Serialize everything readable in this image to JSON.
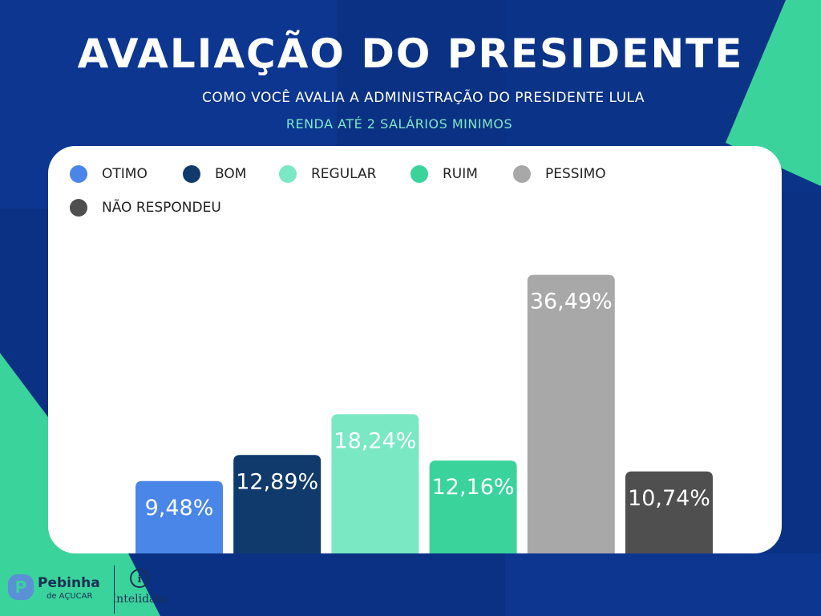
{
  "header": {
    "title": "AVALIAÇÃO DO PRESIDENTE",
    "subtitle": "COMO VOCÊ AVALIA A ADMINISTRAÇÃO DO PRESIDENTE LULA",
    "filter": "RENDA ATÉ 2 SALÁRIOS MINIMOS"
  },
  "colors": {
    "background": "#0a3183",
    "accent": "#3ad39c",
    "otimo": "#4a86e8",
    "bom": "#0f3a6b",
    "regular": "#79e8c3",
    "ruim": "#3ad39c",
    "pessimo": "#a8a8a8",
    "nao_respondeu": "#4f4f4f"
  },
  "legend": [
    {
      "label": "OTIMO"
    },
    {
      "label": "BOM"
    },
    {
      "label": "REGULAR"
    },
    {
      "label": "RUIM"
    },
    {
      "label": "PESSIMO"
    },
    {
      "label": "NÃO RESPONDEU"
    }
  ],
  "chart_data": {
    "type": "bar",
    "categories": [
      "OTIMO",
      "BOM",
      "REGULAR",
      "RUIM",
      "PESSIMO",
      "NÃO RESPONDEU"
    ],
    "values": [
      9.48,
      12.89,
      18.24,
      12.16,
      36.49,
      10.74
    ],
    "labels": [
      "9,48%",
      "12,89%",
      "18,24%",
      "12,16%",
      "36,49%",
      "10,74%"
    ],
    "title": "AVALIAÇÃO DO PRESIDENTE",
    "ylim": [
      0,
      40
    ],
    "grid": false,
    "legend_position": "top-left"
  },
  "footer": {
    "logo_left_line1": "Pebinha",
    "logo_left_line2": "de AÇUCAR",
    "logo_right": "Intelidata"
  }
}
